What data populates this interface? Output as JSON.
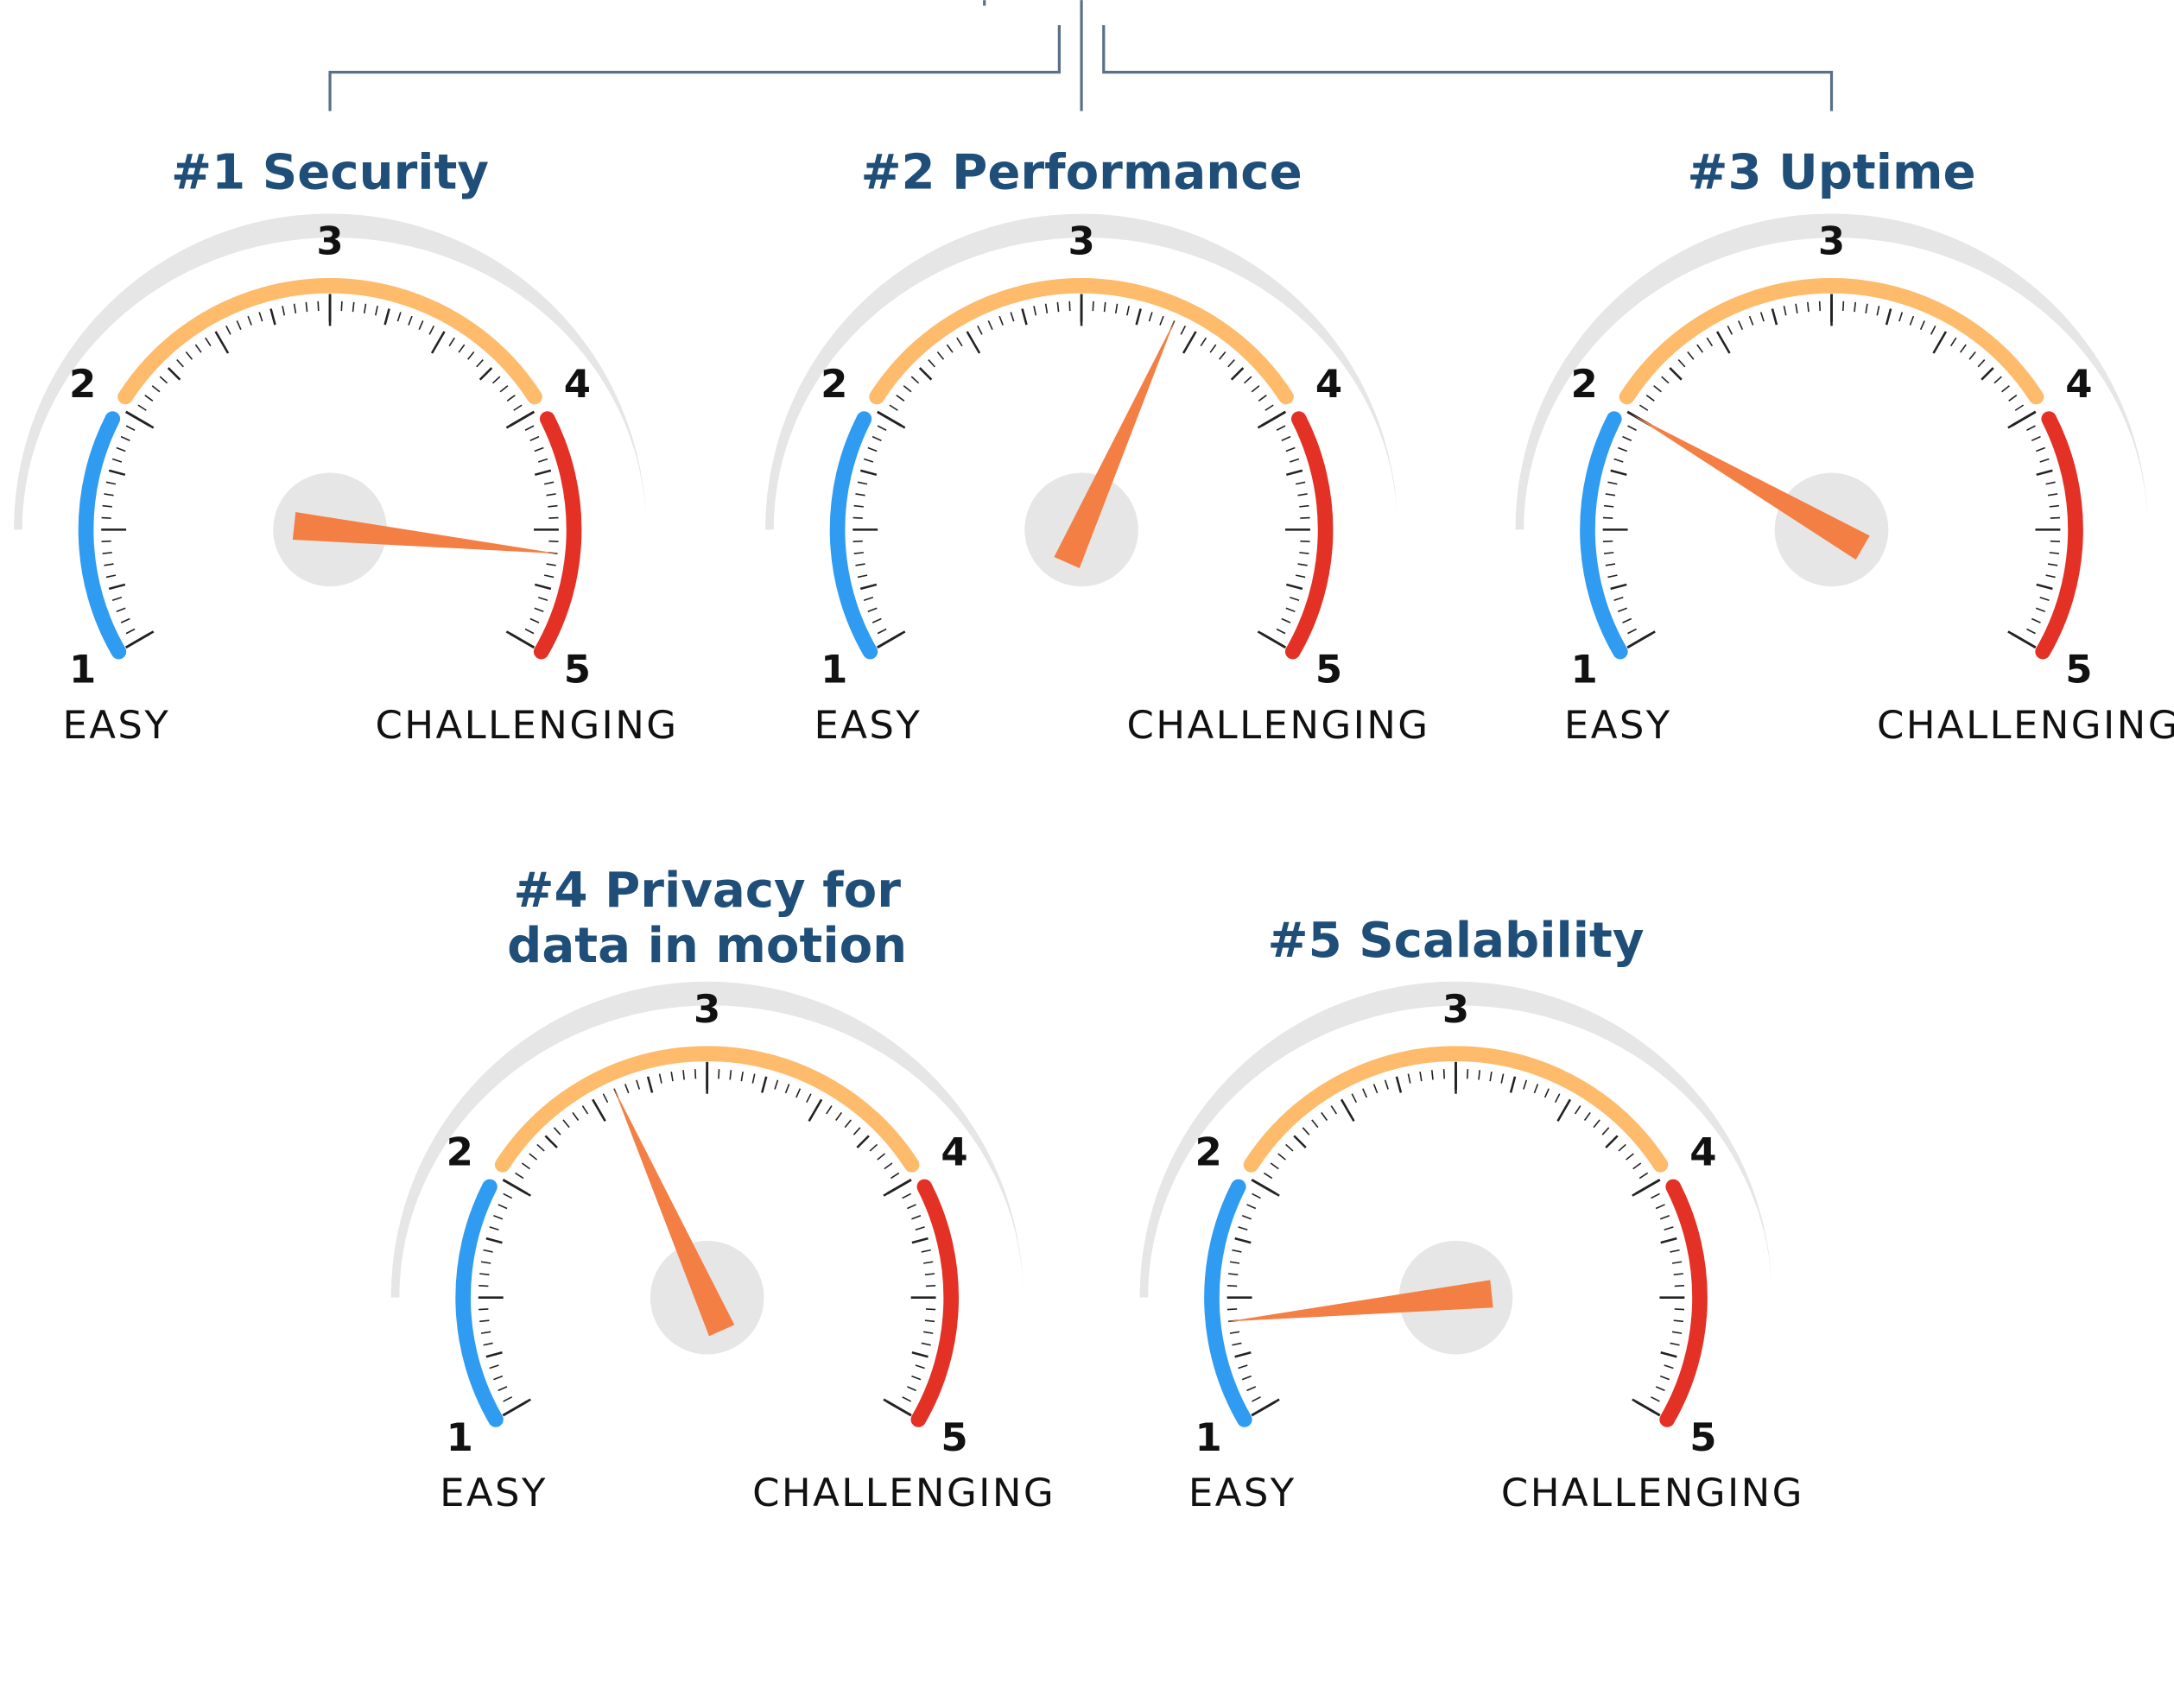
{
  "chart_data": [
    {
      "type": "gauge",
      "title": [
        "#1 Security"
      ],
      "value": 4.6,
      "ylim": [
        1,
        5
      ],
      "yticks": [
        1,
        2,
        3,
        4,
        5
      ],
      "min_label": "EASY",
      "max_label": "CHALLENGING",
      "bands": [
        {
          "from": 1,
          "to": 1.95,
          "color": "#2f9cf2"
        },
        {
          "from": 2.05,
          "to": 3.95,
          "color": "#fdbb6b"
        },
        {
          "from": 4.05,
          "to": 5,
          "color": "#e33125"
        }
      ],
      "needle_color": "#f47f45"
    },
    {
      "type": "gauge",
      "title": [
        "#2 Performance"
      ],
      "value": 3.4,
      "ylim": [
        1,
        5
      ],
      "yticks": [
        1,
        2,
        3,
        4,
        5
      ],
      "min_label": "EASY",
      "max_label": "CHALLENGING",
      "bands": [
        {
          "from": 1,
          "to": 1.95,
          "color": "#2f9cf2"
        },
        {
          "from": 2.05,
          "to": 3.95,
          "color": "#fdbb6b"
        },
        {
          "from": 4.05,
          "to": 5,
          "color": "#e33125"
        }
      ],
      "needle_color": "#f47f45"
    },
    {
      "type": "gauge",
      "title": [
        "#3 Uptime"
      ],
      "value": 2.0,
      "ylim": [
        1,
        5
      ],
      "yticks": [
        1,
        2,
        3,
        4,
        5
      ],
      "min_label": "EASY",
      "max_label": "CHALLENGING",
      "bands": [
        {
          "from": 1,
          "to": 1.95,
          "color": "#2f9cf2"
        },
        {
          "from": 2.05,
          "to": 3.95,
          "color": "#fdbb6b"
        },
        {
          "from": 4.05,
          "to": 5,
          "color": "#e33125"
        }
      ],
      "needle_color": "#f47f45"
    },
    {
      "type": "gauge",
      "title": [
        "#4 Privacy for",
        "data in motion"
      ],
      "value": 2.6,
      "ylim": [
        1,
        5
      ],
      "yticks": [
        1,
        2,
        3,
        4,
        5
      ],
      "min_label": "EASY",
      "max_label": "CHALLENGING",
      "bands": [
        {
          "from": 1,
          "to": 1.95,
          "color": "#2f9cf2"
        },
        {
          "from": 2.05,
          "to": 3.95,
          "color": "#fdbb6b"
        },
        {
          "from": 4.05,
          "to": 5,
          "color": "#e33125"
        }
      ],
      "needle_color": "#f47f45"
    },
    {
      "type": "gauge",
      "title": [
        "#5 Scalability"
      ],
      "value": 1.4,
      "ylim": [
        1,
        5
      ],
      "yticks": [
        1,
        2,
        3,
        4,
        5
      ],
      "min_label": "EASY",
      "max_label": "CHALLENGING",
      "bands": [
        {
          "from": 1,
          "to": 1.95,
          "color": "#2f9cf2"
        },
        {
          "from": 2.05,
          "to": 3.95,
          "color": "#fdbb6b"
        },
        {
          "from": 4.05,
          "to": 5,
          "color": "#e33125"
        }
      ],
      "needle_color": "#f47f45"
    }
  ]
}
